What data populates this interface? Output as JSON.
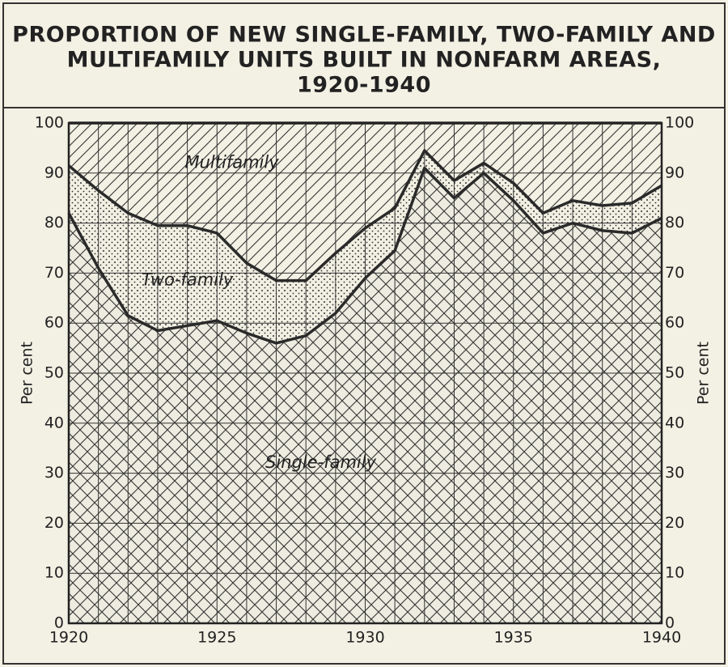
{
  "chart_data": {
    "type": "area",
    "stacked": true,
    "title": [
      "PROPORTION OF NEW SINGLE-FAMILY, TWO-FAMILY AND",
      "MULTIFAMILY UNITS BUILT IN NONFARM AREAS,",
      "1920-1940"
    ],
    "ylabel": "Per cent",
    "y2label": "Per cent",
    "x": [
      1920,
      1921,
      1922,
      1923,
      1924,
      1925,
      1926,
      1927,
      1928,
      1929,
      1930,
      1931,
      1932,
      1933,
      1934,
      1935,
      1936,
      1937,
      1938,
      1939,
      1940
    ],
    "xlim": [
      1920,
      1940
    ],
    "xticks": [
      1920,
      1925,
      1930,
      1935,
      1940
    ],
    "ylim": [
      0,
      100
    ],
    "yticks": [
      0,
      10,
      20,
      30,
      40,
      50,
      60,
      70,
      80,
      90,
      100
    ],
    "y2lim": [
      0,
      100
    ],
    "y2ticks": [
      0,
      10,
      20,
      30,
      40,
      50,
      60,
      70,
      80,
      90,
      100
    ],
    "grid": true,
    "series": [
      {
        "name": "Single-family",
        "color": "#2a2a2a",
        "pattern": "crosshatch",
        "values": [
          82,
          71,
          61.5,
          58.5,
          59.5,
          60.5,
          58,
          56,
          57.5,
          62,
          69,
          74.5,
          91,
          85,
          90,
          84.5,
          78,
          80,
          78.5,
          78,
          81
        ]
      },
      {
        "name": "Two-family",
        "color": "#2a2a2a",
        "pattern": "dots",
        "values": [
          9.5,
          15.5,
          20.5,
          21,
          20,
          17.5,
          14,
          12.5,
          11,
          12,
          10,
          8.5,
          3.5,
          3.5,
          2,
          3.5,
          4,
          4.5,
          5,
          6,
          6.5
        ]
      },
      {
        "name": "Multifamily",
        "color": "#2a2a2a",
        "pattern": "hatch",
        "values": [
          8.5,
          13.5,
          18,
          20.5,
          20.5,
          22,
          28,
          31.5,
          31.5,
          26,
          21,
          17,
          5.5,
          11.5,
          8,
          12,
          18,
          15.5,
          16.5,
          16,
          12.5
        ]
      }
    ]
  }
}
